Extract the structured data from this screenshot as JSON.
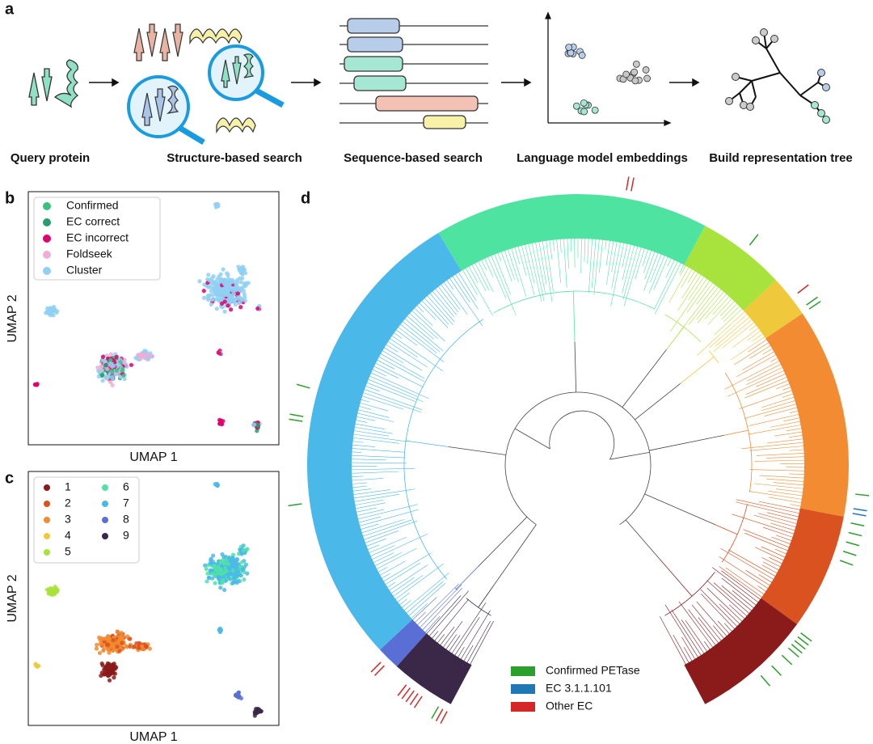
{
  "panel_a": {
    "label": "a",
    "steps": [
      "Query protein",
      "Structure-based search",
      "Sequence-based search",
      "Language model embeddings",
      "Build representation tree"
    ]
  },
  "panel_b": {
    "label": "b",
    "xlabel": "UMAP 1",
    "ylabel": "UMAP 2",
    "legend": [
      {
        "name": "Confirmed",
        "color": "#3dbf7e"
      },
      {
        "name": "EC correct",
        "color": "#2a9d6c"
      },
      {
        "name": "EC incorrect",
        "color": "#e0006e"
      },
      {
        "name": "Foldseek",
        "color": "#efaed6"
      },
      {
        "name": "Cluster",
        "color": "#90d0f2"
      }
    ]
  },
  "panel_c": {
    "label": "c",
    "xlabel": "UMAP 1",
    "ylabel": "UMAP 2",
    "legend": [
      {
        "name": "1",
        "color": "#8b1a1a"
      },
      {
        "name": "2",
        "color": "#d9521f"
      },
      {
        "name": "3",
        "color": "#f28b32"
      },
      {
        "name": "4",
        "color": "#efc93b"
      },
      {
        "name": "5",
        "color": "#a8e23c"
      },
      {
        "name": "6",
        "color": "#4fe3a2"
      },
      {
        "name": "7",
        "color": "#4bb8ea"
      },
      {
        "name": "8",
        "color": "#5a6fd6"
      },
      {
        "name": "9",
        "color": "#3b2848"
      }
    ]
  },
  "panel_d": {
    "label": "d",
    "legend": [
      {
        "name": "Confirmed PETase",
        "color": "#2ca02c"
      },
      {
        "name": "EC 3.1.1.101",
        "color": "#1f77b4"
      },
      {
        "name": "Other EC",
        "color": "#d62728"
      }
    ]
  }
}
